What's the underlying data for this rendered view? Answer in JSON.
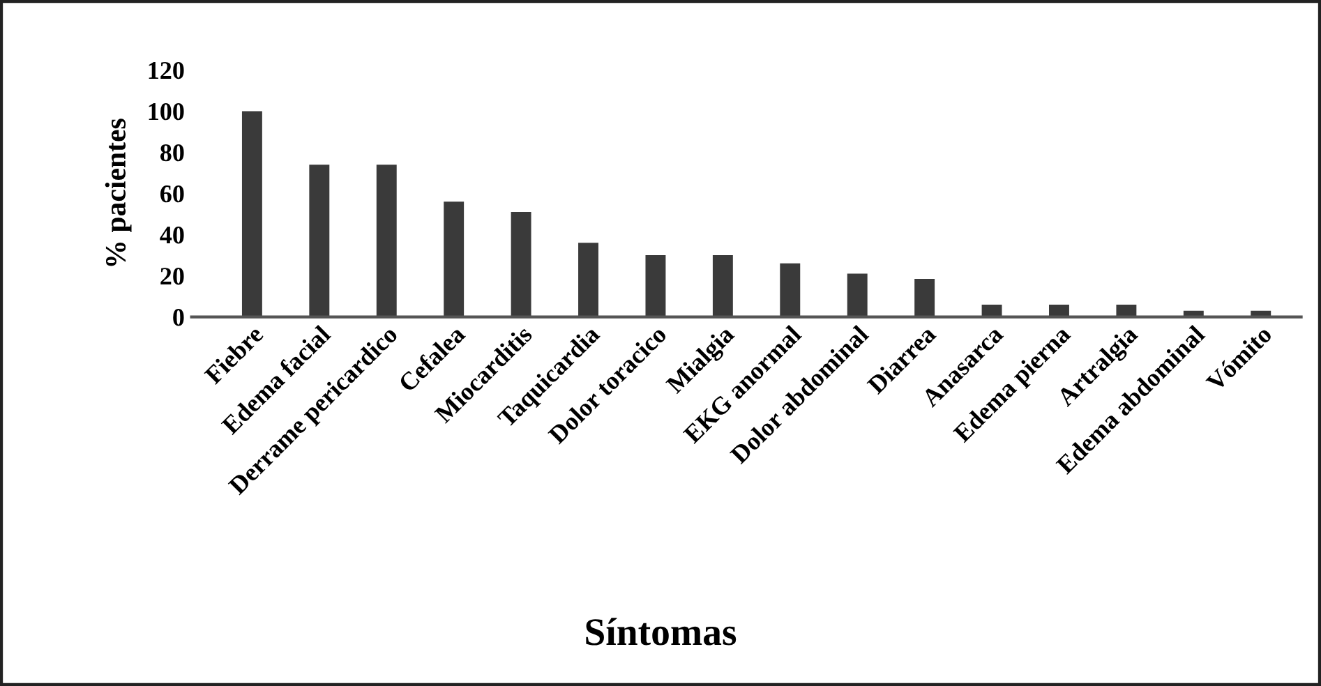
{
  "chart_data": {
    "type": "bar",
    "xlabel": "Síntomas",
    "ylabel": "% pacientes",
    "categories": [
      "Fiebre",
      "Edema facial",
      "Derrame pericardico",
      "Cefalea",
      "Miocarditis",
      "Taquicardia",
      "Dolor toracico",
      "Mialgia",
      "EKG anormal",
      "Dolor abdominal",
      "Diarrea",
      "Anasarca",
      "Edema pierna",
      "Artralgia",
      "Edema abdominal",
      "Vómito"
    ],
    "values": [
      100,
      74,
      74,
      56,
      51,
      36,
      30,
      30,
      26,
      21,
      18.5,
      6,
      6,
      6,
      3,
      3
    ],
    "color": "#3a3a3a",
    "ylim": [
      0,
      120
    ],
    "yticks": [
      0,
      20,
      40,
      60,
      80,
      100,
      120
    ],
    "grid": false,
    "legend": false
  }
}
